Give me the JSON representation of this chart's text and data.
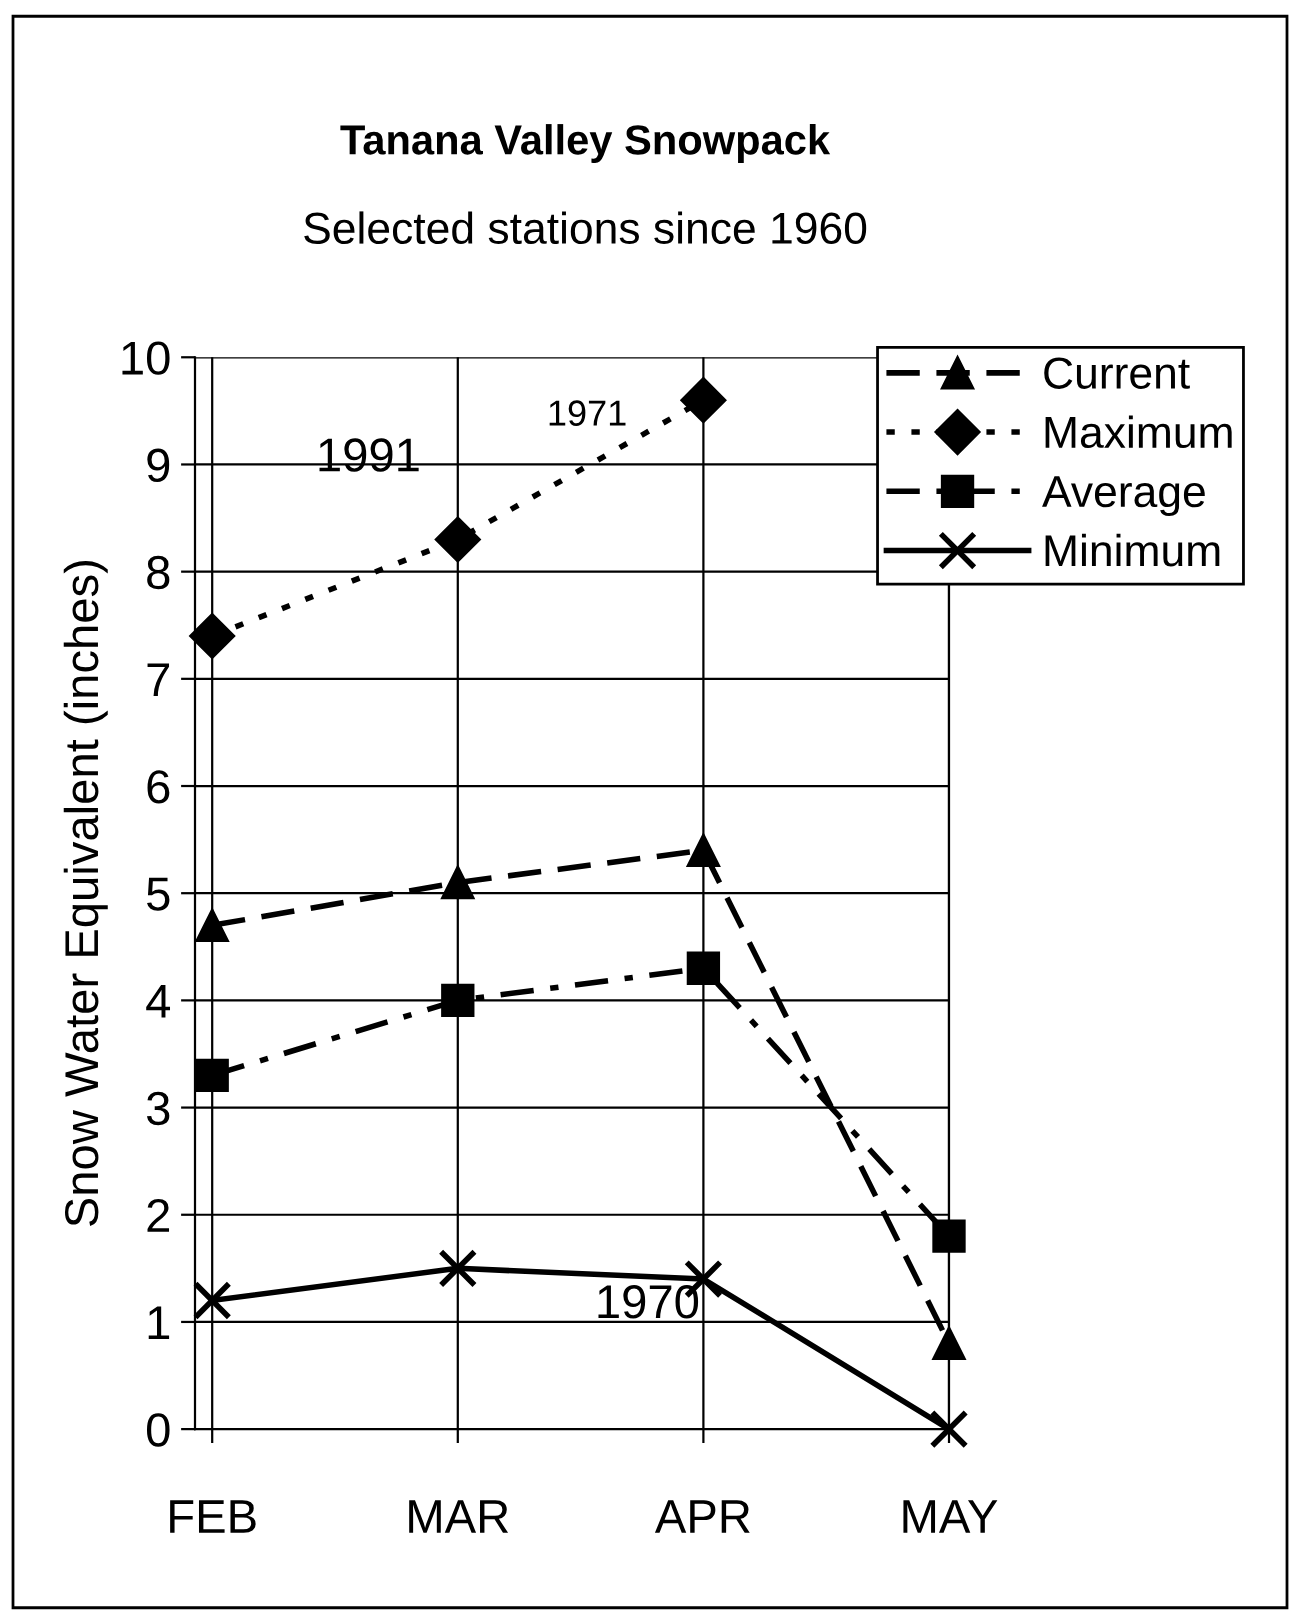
{
  "chart_data": {
    "type": "line",
    "title": "Tanana Valley Snowpack",
    "subtitle": "Selected stations since 1960",
    "ylabel": "Snow Water Equivalent (inches)",
    "categories": [
      "FEB",
      "MAR",
      "APR",
      "MAY"
    ],
    "series": [
      {
        "name": "Current",
        "color": "#000000",
        "marker": "triangle",
        "line_style": "dashed",
        "values": [
          4.7,
          5.1,
          5.4,
          0.8
        ]
      },
      {
        "name": "Maximum",
        "color": "#000000",
        "marker": "diamond",
        "line_style": "dotted",
        "values": [
          7.4,
          8.3,
          9.6,
          null
        ]
      },
      {
        "name": "Average",
        "color": "#000000",
        "marker": "square",
        "line_style": "dashdot",
        "values": [
          3.3,
          4.0,
          4.3,
          1.8
        ]
      },
      {
        "name": "Minimum",
        "color": "#000000",
        "marker": "cross",
        "line_style": "solid",
        "values": [
          1.2,
          1.5,
          1.4,
          0.0
        ]
      }
    ],
    "annotations": [
      "1991",
      "1971",
      "1970"
    ],
    "ylim": [
      0,
      10
    ],
    "yticks": [
      0,
      1,
      2,
      3,
      4,
      5,
      6,
      7,
      8,
      9,
      10
    ],
    "grid": true,
    "legend": "top right"
  }
}
